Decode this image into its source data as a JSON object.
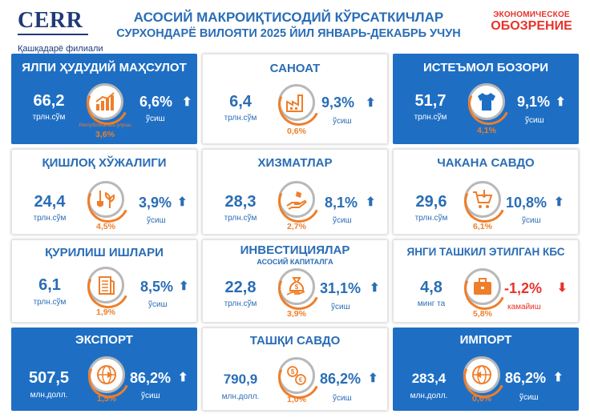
{
  "logo": {
    "name": "CERR",
    "branch": "Қашқадарё филиали"
  },
  "header": {
    "title": "АСОСИЙ МАКРОИҚТИСОДИЙ КЎРСАТКИЧЛАР",
    "subtitle": "СУРХОНДАРЁ ВИЛОЯТИ 2025 ЙИЛ ЯНВАРЬ-ДЕКАБРЬ УЧУН"
  },
  "brand": {
    "line1": "ЭКОНОМИЧЕСКОЕ",
    "line2": "ОБОЗРЕНИЕ",
    "color": "#e8322b"
  },
  "colors": {
    "blue": "#1e6fc4",
    "orange": "#ef7e2a",
    "text_blue": "#2a6db5",
    "red": "#e8322b"
  },
  "cards": [
    {
      "title": "ЯЛПИ ҲУДУДИЙ МАҲСУЛОТ",
      "value": "66,2",
      "unit": "трлн.сўм",
      "icon": "chart-growth-icon",
      "share": "3,6%",
      "share_note": "Республикадаги улуши",
      "pct": "6,6%",
      "direction": "up",
      "label": "ўсиш",
      "style": "blue"
    },
    {
      "title": "САНОАТ",
      "value": "6,4",
      "unit": "трлн.сўм",
      "icon": "factory-icon",
      "share": "0,6%",
      "pct": "9,3%",
      "direction": "up",
      "label": "ўсиш",
      "style": "white"
    },
    {
      "title": "ИСТЕЪМОЛ БОЗОРИ",
      "value": "51,7",
      "unit": "трлн.сўм",
      "icon": "tshirt-icon",
      "share": "4,1%",
      "pct": "9,1%",
      "direction": "up",
      "label": "ўсиш",
      "style": "blue"
    },
    {
      "title": "ҚИШЛОҚ ХЎЖАЛИГИ",
      "value": "24,4",
      "unit": "трлн.сўм",
      "icon": "shovel-plant-icon",
      "share": "4,5%",
      "pct": "3,9%",
      "direction": "up",
      "label": "ўсиш",
      "style": "white"
    },
    {
      "title": "ХИЗМАТЛАР",
      "value": "28,3",
      "unit": "трлн.сўм",
      "icon": "hand-service-icon",
      "share": "2,7%",
      "pct": "8,1%",
      "direction": "up",
      "label": "ўсиш",
      "style": "white"
    },
    {
      "title": "ЧАКАНА САВДО",
      "value": "29,6",
      "unit": "трлн.сўм",
      "icon": "shopping-cart-icon",
      "share": "6,1%",
      "pct": "10,8%",
      "direction": "up",
      "label": "ўсиш",
      "style": "white"
    },
    {
      "title": "ҚУРИЛИШ ИШЛАРИ",
      "value": "6,1",
      "unit": "трлн.сўм",
      "icon": "building-icon",
      "share": "1,9%",
      "pct": "8,5%",
      "direction": "up",
      "label": "ўсиш",
      "style": "white"
    },
    {
      "title": "ИНВЕСТИЦИЯЛАР",
      "subtitle": "АСОСИЙ КАПИТАЛГА",
      "value": "22,8",
      "unit": "трлн.сўм",
      "icon": "money-bag-icon",
      "share": "3,9%",
      "pct": "31,1%",
      "direction": "up",
      "label": "ўсиш",
      "style": "white"
    },
    {
      "title": "ЯНГИ ТАШКИЛ ЭТИЛГАН КБС",
      "value": "4,8",
      "unit": "минг та",
      "icon": "briefcase-icon",
      "share": "5,8%",
      "pct": "-1,2%",
      "direction": "down",
      "label": "камайиш",
      "style": "white"
    },
    {
      "title": "ЭКСПОРТ",
      "value": "507,5",
      "unit": "млн.долл.",
      "icon": "globe-export-icon",
      "share": "1,5%",
      "pct": "86,2%",
      "direction": "up",
      "label": "ўсиш",
      "style": "blue"
    },
    {
      "title": "ТАШҚИ САВДО",
      "value": "790,9",
      "unit": "млн.долл.",
      "icon": "currency-exchange-icon",
      "share": "1,0%",
      "pct": "86,2%",
      "direction": "up",
      "label": "ўсиш",
      "style": "white"
    },
    {
      "title": "ИМПОРТ",
      "value": "283,4",
      "unit": "млн.долл.",
      "icon": "globe-import-icon",
      "share": "0,6%",
      "pct": "86,2%",
      "direction": "up",
      "label": "ўсиш",
      "style": "blue"
    }
  ]
}
